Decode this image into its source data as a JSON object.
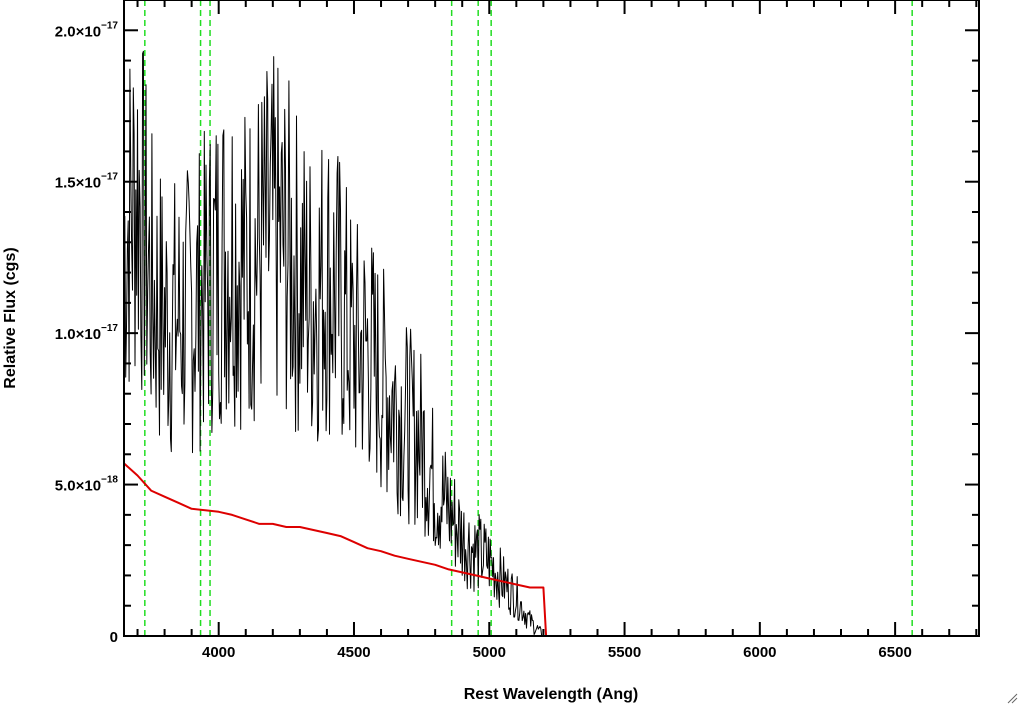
{
  "chart_data": {
    "type": "line",
    "xlabel": "Rest Wavelength (Ang)",
    "ylabel": "Relative Flux (cgs)",
    "xlim": [
      3650,
      6810
    ],
    "ylim": [
      0,
      2.1e-17
    ],
    "grid": false,
    "x_ticks": [
      {
        "value": 4000,
        "label": "4000"
      },
      {
        "value": 4500,
        "label": "4500"
      },
      {
        "value": 5000,
        "label": "5000"
      },
      {
        "value": 5500,
        "label": "5500"
      },
      {
        "value": 6000,
        "label": "6000"
      },
      {
        "value": 6500,
        "label": "6500"
      }
    ],
    "y_ticks": [
      {
        "value": 0,
        "mantissa": "0",
        "exponent": ""
      },
      {
        "value": 5e-18,
        "mantissa": "5.0×10",
        "exponent": "−18"
      },
      {
        "value": 1e-17,
        "mantissa": "1.0×10",
        "exponent": "−17"
      },
      {
        "value": 1.5e-17,
        "mantissa": "1.5×10",
        "exponent": "−17"
      },
      {
        "value": 2e-17,
        "mantissa": "2.0×10",
        "exponent": "−17"
      }
    ],
    "vertical_lines": {
      "color": "#22dd22",
      "style": "dashed",
      "x": [
        3727,
        3933,
        3968,
        4861,
        4959,
        5007,
        6563
      ]
    },
    "series": [
      {
        "color": "#000000",
        "style": "noisy spectrum",
        "x": [
          3650,
          3700,
          3750,
          3800,
          3850,
          3900,
          3950,
          4000,
          4050,
          4100,
          4150,
          4200,
          4250,
          4300,
          4350,
          4400,
          4450,
          4500,
          4550,
          4600,
          4650,
          4700,
          4750,
          4800,
          4850,
          4900,
          4950,
          5000,
          5050,
          5100,
          5150,
          5200
        ],
        "y": [
          1.3e-17,
          1.5e-17,
          1.15e-17,
          1.05e-17,
          1.05e-17,
          1.08e-17,
          1.15e-17,
          1.25e-17,
          1.3e-17,
          1.22e-17,
          1.28e-17,
          1.32e-17,
          1.28e-17,
          1.18e-17,
          1.12e-17,
          1.2e-17,
          1.1e-17,
          9.5e-18,
          9.5e-18,
          8.5e-18,
          7.8e-18,
          7e-18,
          6.5e-18,
          5e-18,
          4.2e-18,
          3.3e-18,
          2.8e-18,
          2.5e-18,
          1.8e-18,
          1.3e-18,
          5e-19,
          0
        ]
      },
      {
        "color": "#dd0000",
        "style": "model",
        "x": [
          3650,
          3700,
          3750,
          3800,
          3850,
          3900,
          3950,
          4000,
          4050,
          4100,
          4150,
          4200,
          4250,
          4300,
          4350,
          4400,
          4450,
          4500,
          4550,
          4600,
          4650,
          4700,
          4750,
          4800,
          4850,
          4900,
          4950,
          5000,
          5050,
          5100,
          5150,
          5200,
          5210,
          6810
        ],
        "y": [
          5.7e-18,
          5.3e-18,
          4.8e-18,
          4.6e-18,
          4.4e-18,
          4.2e-18,
          4.15e-18,
          4.1e-18,
          4e-18,
          3.85e-18,
          3.7e-18,
          3.7e-18,
          3.6e-18,
          3.6e-18,
          3.5e-18,
          3.4e-18,
          3.3e-18,
          3.1e-18,
          2.9e-18,
          2.8e-18,
          2.65e-18,
          2.55e-18,
          2.45e-18,
          2.35e-18,
          2.2e-18,
          2.1e-18,
          2e-18,
          1.9e-18,
          1.8e-18,
          1.7e-18,
          1.6e-18,
          1.6e-18,
          0,
          0
        ]
      }
    ]
  }
}
